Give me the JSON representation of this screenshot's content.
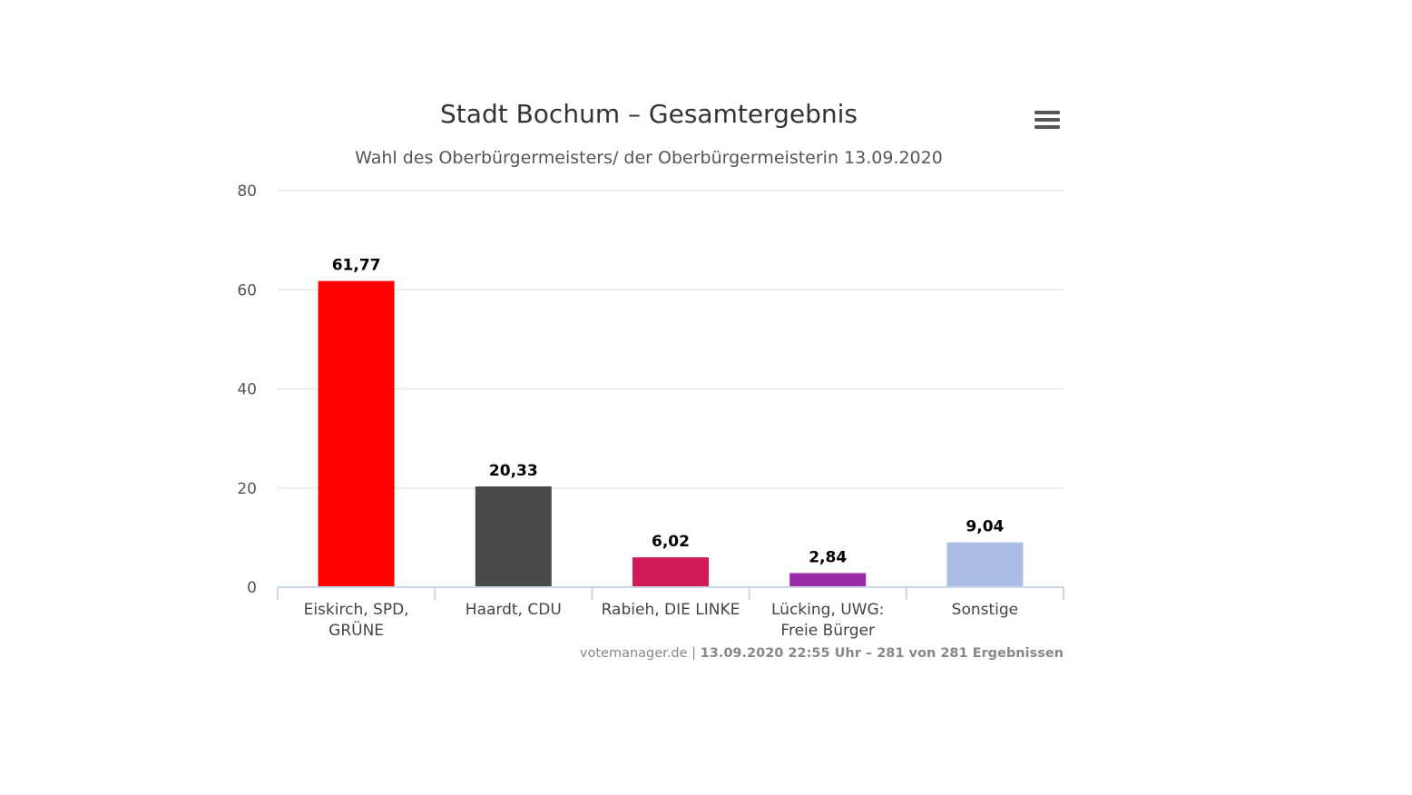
{
  "chart_data": {
    "type": "bar",
    "title": "Stadt Bochum – Gesamtergebnis",
    "subtitle": "Wahl des Oberbürgermeisters/ der Oberbürgermeisterin 13.09.2020",
    "categories": [
      [
        "Eiskirch, SPD,",
        "GRÜNE"
      ],
      [
        "Haardt, CDU"
      ],
      [
        "Rabieh, DIE LINKE"
      ],
      [
        "Lücking, UWG:",
        "Freie Bürger"
      ],
      [
        "Sonstige"
      ]
    ],
    "values": [
      61.77,
      20.33,
      6.02,
      2.84,
      9.04
    ],
    "data_labels": [
      "61,77",
      "20,33",
      "6,02",
      "2,84",
      "9,04"
    ],
    "colors": [
      "#ff0000",
      "#4a4a4a",
      "#cf1a57",
      "#9b2aa7",
      "#abbde5"
    ],
    "y_ticks": [
      0,
      20,
      40,
      60,
      80
    ],
    "ylim": [
      0,
      80
    ],
    "xlabel": "",
    "ylabel": "",
    "grid": true,
    "legend": "none"
  },
  "credits": {
    "source": "votemanager.de",
    "separator": " | ",
    "info": "13.09.2020 22:55 Uhr – 281 von 281 Ergebnissen"
  },
  "menu": {
    "icon": "hamburger-menu-icon"
  }
}
